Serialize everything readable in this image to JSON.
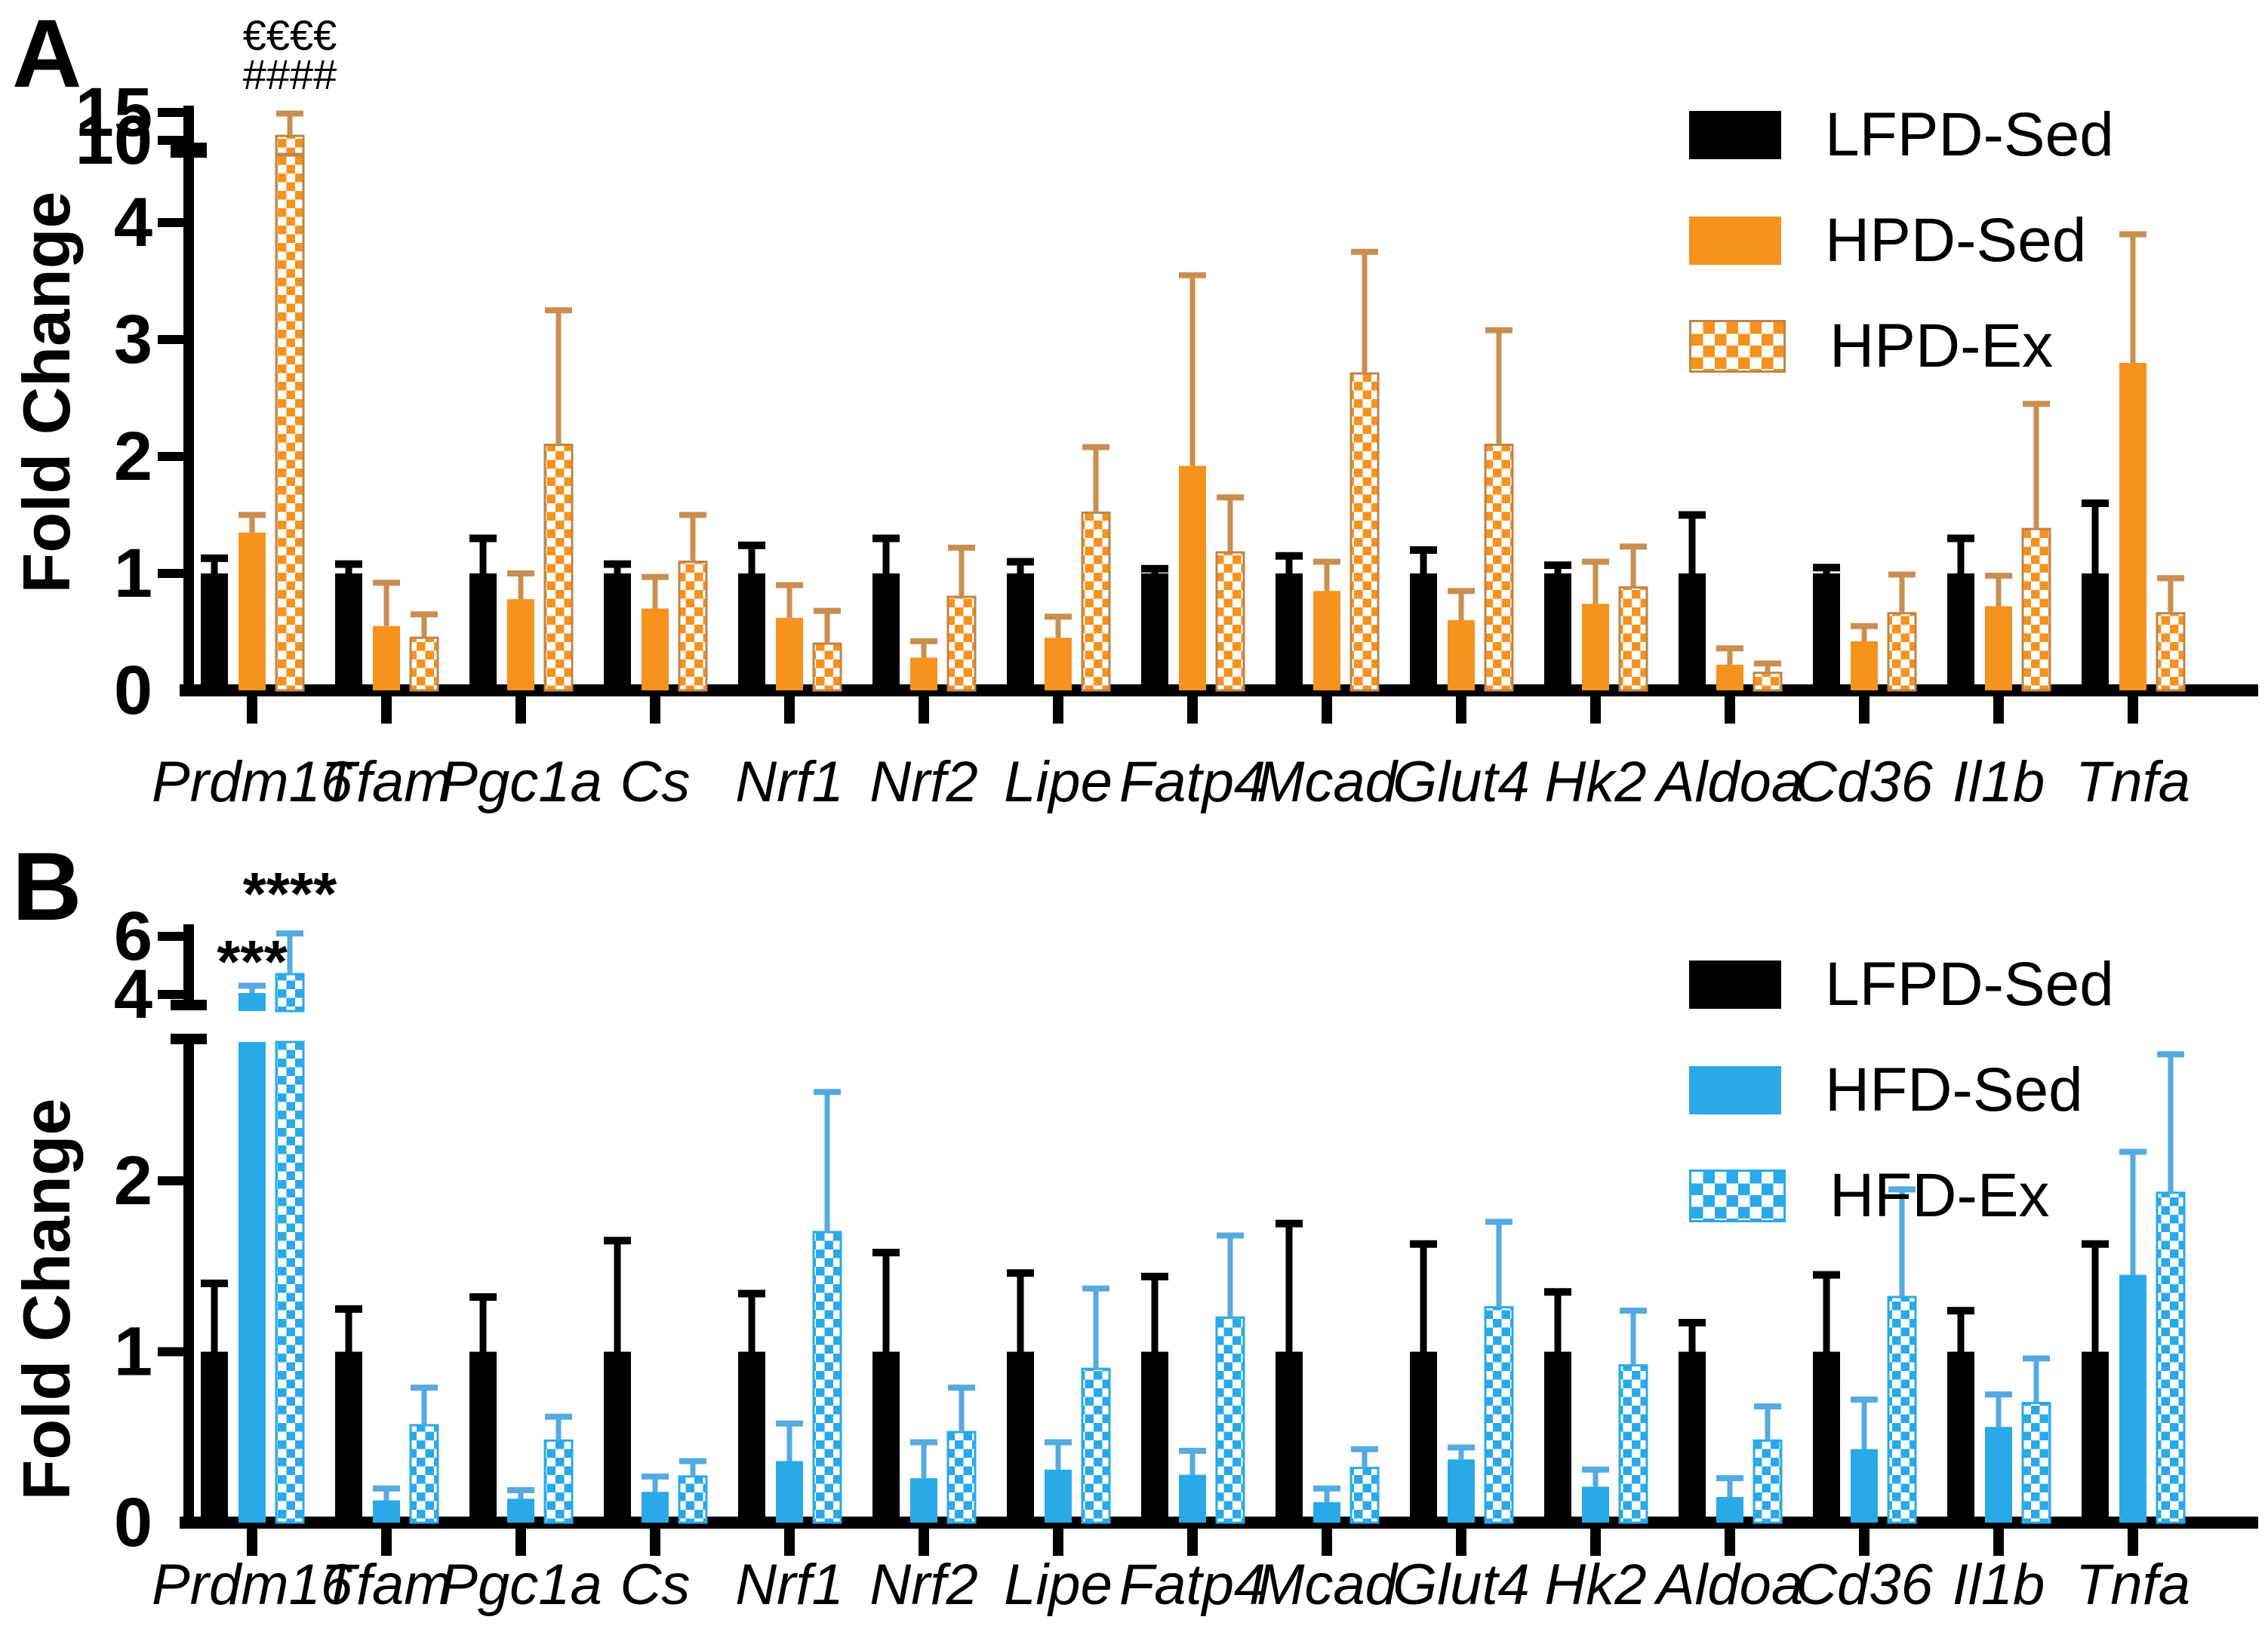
{
  "figure": {
    "panel_a_letter": "A",
    "panel_b_letter": "B",
    "background": "#FFFFFF"
  },
  "colors": {
    "black": "#000000",
    "orange": "#F6921E",
    "orange_err": "#C98F52",
    "orange_outline": "#C08445",
    "blue": "#29A9E8",
    "blue_err": "#55AADF",
    "blue_outline": "#2AA9E8",
    "axis": "#000000",
    "white": "#FFFFFF"
  },
  "chart_data": [
    {
      "panel": "A",
      "type": "bar",
      "ylabel": "Fold Change",
      "grid": false,
      "axis_break": true,
      "lower_ticks": [
        0,
        1,
        2,
        3,
        4
      ],
      "upper_ticks": [
        10,
        15
      ],
      "lower_range": [
        0,
        4.6
      ],
      "upper_range": [
        10,
        15.3
      ],
      "categories": [
        "Prdm16",
        "Tfam",
        "Pgc1a",
        "Cs",
        "Nrf1",
        "Nrf2",
        "Lipe",
        "Fatp4",
        "Mcad",
        "Glut4",
        "Hk2",
        "Aldoa",
        "Cd36",
        "Il1b",
        "Tnfa"
      ],
      "series": [
        {
          "name": "LFPD-Sed",
          "color_key": "black",
          "pattern": "solid",
          "values": [
            1,
            1,
            1,
            1,
            1,
            1,
            1,
            1,
            1,
            1,
            1,
            1,
            1,
            1,
            1
          ],
          "errors": [
            0.13,
            0.08,
            0.3,
            0.08,
            0.24,
            0.3,
            0.1,
            0.04,
            0.15,
            0.2,
            0.07,
            0.5,
            0.05,
            0.3,
            0.6
          ]
        },
        {
          "name": "HPD-Sed",
          "color_key": "orange",
          "pattern": "solid",
          "values": [
            1.35,
            0.55,
            0.78,
            0.7,
            0.62,
            0.28,
            0.45,
            1.92,
            0.85,
            0.6,
            0.74,
            0.22,
            0.42,
            0.72,
            2.8
          ],
          "errors": [
            0.15,
            0.37,
            0.22,
            0.27,
            0.28,
            0.14,
            0.18,
            1.63,
            0.25,
            0.25,
            0.36,
            0.14,
            0.13,
            0.26,
            1.1
          ]
        },
        {
          "name": "HPD-Ex",
          "color_key": "orange",
          "pattern": "checker",
          "values": [
            10.8,
            0.45,
            2.1,
            1.1,
            0.4,
            0.8,
            1.52,
            1.18,
            2.71,
            2.1,
            0.88,
            0.15,
            0.66,
            1.38,
            0.66
          ],
          "errors": [
            4.0,
            0.2,
            1.15,
            0.4,
            0.28,
            0.42,
            0.56,
            0.47,
            1.04,
            0.98,
            0.35,
            0.08,
            0.33,
            1.07,
            0.3
          ]
        }
      ],
      "annotations": [
        {
          "text": "€€€€",
          "category": "Prdm16",
          "series": 2,
          "y": 66,
          "font": 56,
          "weight": "normal"
        },
        {
          "text": "####",
          "category": "Prdm16",
          "series": 2,
          "y": 118,
          "font": 56,
          "weight": "normal"
        }
      ],
      "legend": {
        "items": [
          {
            "label": "LFPD-Sed",
            "swatch": "black-solid"
          },
          {
            "label": "HPD-Sed",
            "swatch": "orange-solid"
          },
          {
            "label": "HPD-Ex",
            "swatch": "orange-checker"
          }
        ]
      }
    },
    {
      "panel": "B",
      "type": "bar",
      "ylabel": "Fold Change",
      "grid": false,
      "axis_break": true,
      "lower_ticks": [
        0,
        1,
        2
      ],
      "upper_ticks": [
        4,
        6
      ],
      "lower_range": [
        0,
        2.83
      ],
      "upper_range": [
        3.9,
        6.4
      ],
      "categories": [
        "Prdm16",
        "Tfam",
        "Pgc1a",
        "Cs",
        "Nrf1",
        "Nrf2",
        "Lipe",
        "Fatp4",
        "Mcad",
        "Glut4",
        "Hk2",
        "Aldoa",
        "Cd36",
        "Il1b",
        "Tnfa"
      ],
      "series": [
        {
          "name": "LFPD-Sed",
          "color_key": "black",
          "pattern": "solid",
          "values": [
            1,
            1,
            1,
            1,
            1,
            1,
            1,
            1,
            1,
            1,
            1,
            1,
            1,
            1,
            1
          ],
          "errors": [
            0.4,
            0.25,
            0.32,
            0.65,
            0.34,
            0.58,
            0.46,
            0.44,
            0.75,
            0.63,
            0.35,
            0.17,
            0.45,
            0.24,
            0.63
          ]
        },
        {
          "name": "HFD-Sed",
          "color_key": "blue",
          "pattern": "solid",
          "values": [
            4.05,
            0.13,
            0.14,
            0.18,
            0.36,
            0.26,
            0.31,
            0.28,
            0.12,
            0.37,
            0.21,
            0.15,
            0.43,
            0.56,
            1.45
          ],
          "errors": [
            0.25,
            0.07,
            0.05,
            0.09,
            0.22,
            0.21,
            0.16,
            0.14,
            0.08,
            0.07,
            0.1,
            0.11,
            0.29,
            0.19,
            0.72
          ]
        },
        {
          "name": "HFD-Ex",
          "color_key": "blue",
          "pattern": "checker",
          "values": [
            4.7,
            0.57,
            0.48,
            0.27,
            1.7,
            0.53,
            0.9,
            1.2,
            0.32,
            1.26,
            0.92,
            0.48,
            1.32,
            0.7,
            1.93
          ],
          "errors": [
            1.4,
            0.22,
            0.14,
            0.09,
            0.82,
            0.26,
            0.47,
            0.48,
            0.11,
            0.5,
            0.32,
            0.2,
            0.63,
            0.26,
            0.81
          ]
        }
      ],
      "annotations": [
        {
          "text": "***",
          "category": "Prdm16",
          "series": 1,
          "y": 1302,
          "font": 80,
          "weight": "bold"
        },
        {
          "text": "****",
          "category": "Prdm16",
          "series": 2,
          "y": 1212,
          "font": 80,
          "weight": "bold"
        }
      ],
      "legend": {
        "items": [
          {
            "label": "LFPD-Sed",
            "swatch": "black-solid"
          },
          {
            "label": "HFD-Sed",
            "swatch": "blue-solid"
          },
          {
            "label": "HFD-Ex",
            "swatch": "blue-checker"
          }
        ]
      }
    }
  ]
}
